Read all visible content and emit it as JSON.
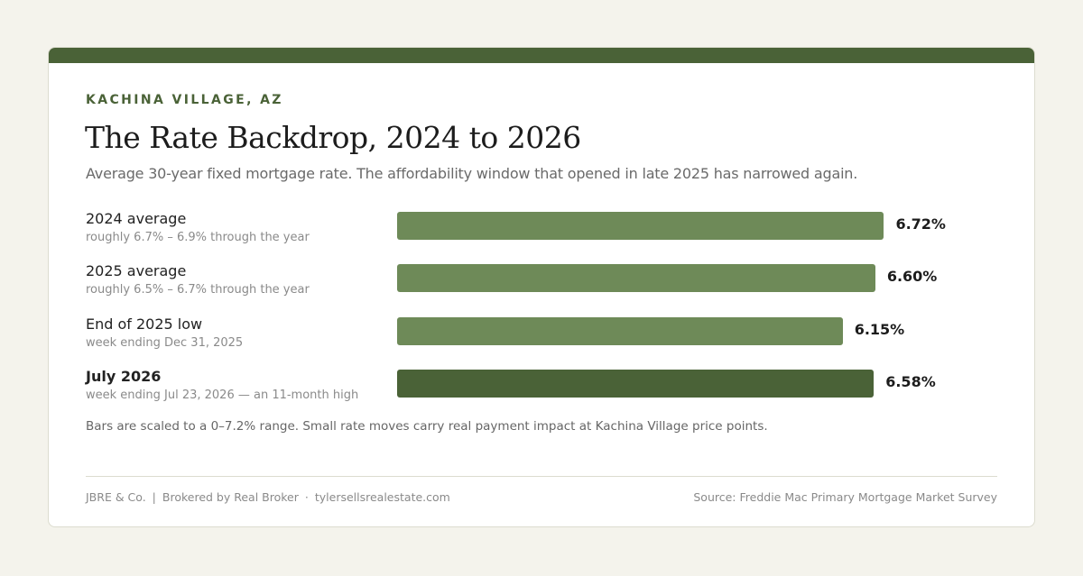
{
  "eyebrow": "KACHINA VILLAGE, AZ",
  "title": "The Rate Backdrop, 2024 to 2026",
  "subtitle": "Average 30-year fixed mortgage rate. The affordability window that opened in late 2025 has narrowed again.",
  "footnote": "Bars are scaled to a 0–7.2% range. Small rate moves carry real payment impact at Kachina Village price points.",
  "footer": {
    "brand": "JBRE & Co.",
    "divider": "|",
    "broker": "Brokered by Real Broker",
    "dot": "·",
    "site": "tylersellsrealestate.com",
    "source": "Source: Freddie Mac Primary Mortgage Market Survey"
  },
  "colors": {
    "accent": "#4a6237",
    "bar": "#6e8a58",
    "highlight_bar": "#4a6237",
    "background": "#f4f3ec"
  },
  "chart_data": {
    "type": "bar",
    "orientation": "horizontal",
    "xlim": [
      0,
      7.2
    ],
    "unit": "%",
    "categories": [
      "2024 average",
      "2025 average",
      "End of 2025 low",
      "July 2026"
    ],
    "notes": [
      "roughly 6.7% – 6.9% through the year",
      "roughly 6.5% – 6.7% through the year",
      "week ending Dec 31, 2025",
      "week ending Jul 23, 2026 — an 11-month high"
    ],
    "values": [
      6.72,
      6.6,
      6.15,
      6.58
    ],
    "value_labels": [
      "6.72%",
      "6.60%",
      "6.15%",
      "6.58%"
    ],
    "highlight_index": 3
  }
}
